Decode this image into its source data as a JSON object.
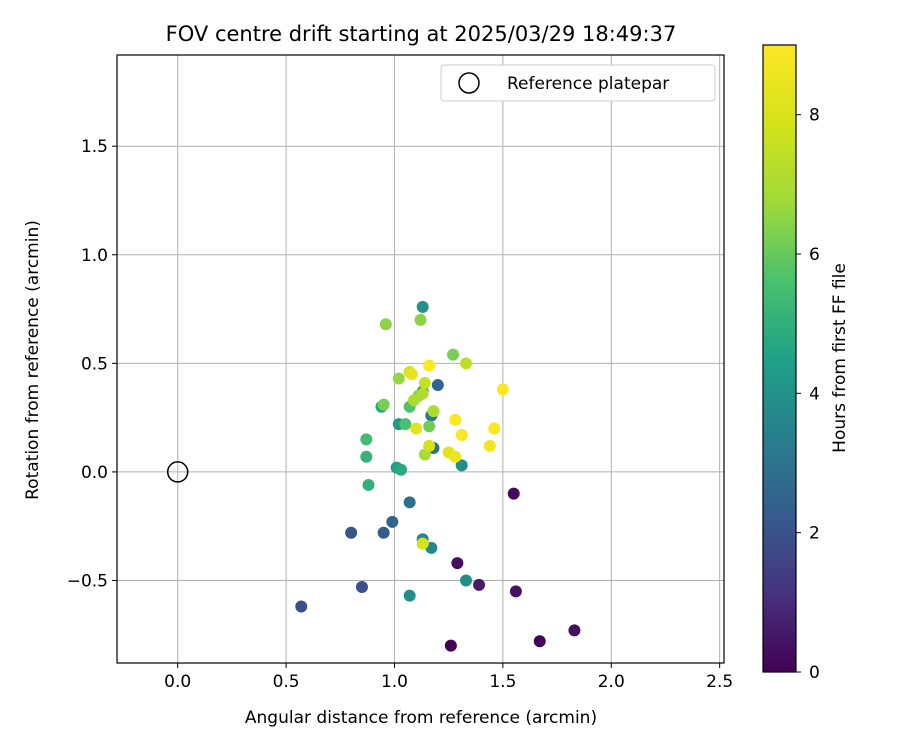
{
  "chart_data": {
    "type": "scatter",
    "title": "FOV centre drift starting at 2025/03/29 18:49:37",
    "xlabel": "Angular distance from reference (arcmin)",
    "ylabel": "Rotation from reference (arcmin)",
    "xlim": [
      -0.28,
      2.52
    ],
    "ylim": [
      -0.88,
      1.92
    ],
    "xticks": [
      0.0,
      0.5,
      1.0,
      1.5,
      2.0,
      2.5
    ],
    "yticks": [
      -0.5,
      0.0,
      0.5,
      1.0,
      1.5
    ],
    "xtick_labels": [
      "0.0",
      "0.5",
      "1.0",
      "1.5",
      "2.0",
      "2.5"
    ],
    "ytick_labels": [
      "−0.5",
      "0.0",
      "0.5",
      "1.0",
      "1.5"
    ],
    "grid": true,
    "legend": {
      "position": "top-right",
      "entries": [
        "Reference platepar"
      ]
    },
    "reference": {
      "x": 0.0,
      "y": 0.0
    },
    "colorbar": {
      "label": "Hours from first FF file",
      "range": [
        0,
        9
      ],
      "ticks": [
        0,
        2,
        4,
        6,
        8
      ],
      "tick_labels": [
        "0",
        "2",
        "4",
        "6",
        "8"
      ],
      "colormap": "viridis"
    },
    "points": [
      {
        "x": 1.26,
        "y": -0.8,
        "h": 0.0
      },
      {
        "x": 1.67,
        "y": -0.78,
        "h": 0.1
      },
      {
        "x": 1.83,
        "y": -0.73,
        "h": 0.3
      },
      {
        "x": 1.56,
        "y": -0.55,
        "h": 0.4
      },
      {
        "x": 1.39,
        "y": -0.52,
        "h": 0.6
      },
      {
        "x": 1.29,
        "y": -0.42,
        "h": 0.3
      },
      {
        "x": 1.55,
        "y": -0.1,
        "h": 0.2
      },
      {
        "x": 0.57,
        "y": -0.62,
        "h": 1.9
      },
      {
        "x": 0.85,
        "y": -0.53,
        "h": 1.9
      },
      {
        "x": 0.8,
        "y": -0.28,
        "h": 2.0
      },
      {
        "x": 0.95,
        "y": -0.28,
        "h": 2.3
      },
      {
        "x": 0.99,
        "y": -0.23,
        "h": 2.5
      },
      {
        "x": 1.07,
        "y": -0.14,
        "h": 2.9
      },
      {
        "x": 1.2,
        "y": 0.4,
        "h": 2.5
      },
      {
        "x": 1.18,
        "y": 0.11,
        "h": 3.0
      },
      {
        "x": 1.17,
        "y": 0.26,
        "h": 3.2
      },
      {
        "x": 1.07,
        "y": -0.57,
        "h": 3.9
      },
      {
        "x": 1.13,
        "y": -0.31,
        "h": 3.7
      },
      {
        "x": 1.17,
        "y": -0.35,
        "h": 3.7
      },
      {
        "x": 1.33,
        "y": -0.5,
        "h": 3.9
      },
      {
        "x": 1.31,
        "y": 0.03,
        "h": 3.8
      },
      {
        "x": 1.13,
        "y": 0.76,
        "h": 4.0
      },
      {
        "x": 1.01,
        "y": 0.02,
        "h": 4.5
      },
      {
        "x": 1.02,
        "y": 0.22,
        "h": 4.3
      },
      {
        "x": 1.13,
        "y": 0.37,
        "h": 4.0
      },
      {
        "x": 1.03,
        "y": 0.01,
        "h": 4.8
      },
      {
        "x": 0.94,
        "y": 0.3,
        "h": 4.6
      },
      {
        "x": 0.88,
        "y": -0.06,
        "h": 5.0
      },
      {
        "x": 0.87,
        "y": 0.07,
        "h": 5.1
      },
      {
        "x": 0.87,
        "y": 0.15,
        "h": 5.4
      },
      {
        "x": 1.05,
        "y": 0.22,
        "h": 5.6
      },
      {
        "x": 1.07,
        "y": 0.3,
        "h": 5.7
      },
      {
        "x": 0.95,
        "y": 0.31,
        "h": 6.2
      },
      {
        "x": 1.16,
        "y": 0.21,
        "h": 6.1
      },
      {
        "x": 1.11,
        "y": 0.35,
        "h": 6.4
      },
      {
        "x": 1.27,
        "y": 0.54,
        "h": 6.2
      },
      {
        "x": 1.12,
        "y": 0.7,
        "h": 6.5
      },
      {
        "x": 0.96,
        "y": 0.68,
        "h": 6.5
      },
      {
        "x": 1.02,
        "y": 0.43,
        "h": 6.6
      },
      {
        "x": 1.14,
        "y": 0.08,
        "h": 6.9
      },
      {
        "x": 1.18,
        "y": 0.28,
        "h": 7.0
      },
      {
        "x": 1.09,
        "y": 0.33,
        "h": 7.0
      },
      {
        "x": 1.13,
        "y": 0.36,
        "h": 7.1
      },
      {
        "x": 1.33,
        "y": 0.5,
        "h": 7.4
      },
      {
        "x": 1.14,
        "y": 0.41,
        "h": 7.6
      },
      {
        "x": 1.07,
        "y": 0.46,
        "h": 7.7
      },
      {
        "x": 1.16,
        "y": 0.12,
        "h": 7.9
      },
      {
        "x": 1.13,
        "y": -0.33,
        "h": 8.0
      },
      {
        "x": 1.1,
        "y": 0.2,
        "h": 8.2
      },
      {
        "x": 1.25,
        "y": 0.09,
        "h": 8.3
      },
      {
        "x": 1.08,
        "y": 0.45,
        "h": 8.4
      },
      {
        "x": 1.28,
        "y": 0.07,
        "h": 8.6
      },
      {
        "x": 1.44,
        "y": 0.12,
        "h": 8.7
      },
      {
        "x": 1.46,
        "y": 0.2,
        "h": 8.9
      },
      {
        "x": 1.31,
        "y": 0.17,
        "h": 8.9
      },
      {
        "x": 1.28,
        "y": 0.24,
        "h": 9.0
      },
      {
        "x": 1.16,
        "y": 0.49,
        "h": 9.0
      },
      {
        "x": 1.5,
        "y": 0.38,
        "h": 9.0
      }
    ]
  }
}
